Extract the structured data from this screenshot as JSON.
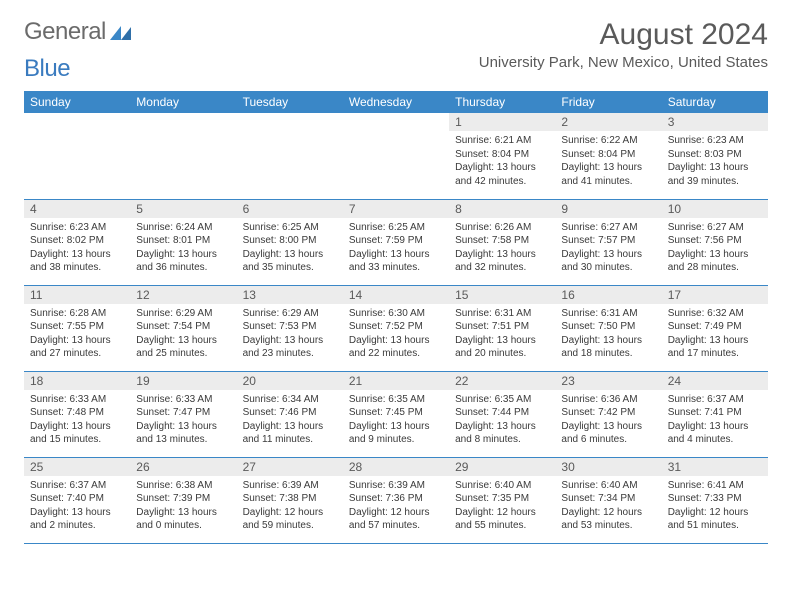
{
  "logo": {
    "part1": "General",
    "part2": "Blue"
  },
  "title": "August 2024",
  "location": "University Park, New Mexico, United States",
  "colors": {
    "header_bg": "#3a87c7",
    "header_text": "#ffffff",
    "daynum_bg": "#ececec",
    "border": "#3a87c7",
    "title_color": "#5a5a5a",
    "logo_gray": "#6b6b6b",
    "logo_blue": "#3a7bbf"
  },
  "day_headers": [
    "Sunday",
    "Monday",
    "Tuesday",
    "Wednesday",
    "Thursday",
    "Friday",
    "Saturday"
  ],
  "weeks": [
    [
      null,
      null,
      null,
      null,
      {
        "n": "1",
        "sunrise": "Sunrise: 6:21 AM",
        "sunset": "Sunset: 8:04 PM",
        "daylight": "Daylight: 13 hours and 42 minutes."
      },
      {
        "n": "2",
        "sunrise": "Sunrise: 6:22 AM",
        "sunset": "Sunset: 8:04 PM",
        "daylight": "Daylight: 13 hours and 41 minutes."
      },
      {
        "n": "3",
        "sunrise": "Sunrise: 6:23 AM",
        "sunset": "Sunset: 8:03 PM",
        "daylight": "Daylight: 13 hours and 39 minutes."
      }
    ],
    [
      {
        "n": "4",
        "sunrise": "Sunrise: 6:23 AM",
        "sunset": "Sunset: 8:02 PM",
        "daylight": "Daylight: 13 hours and 38 minutes."
      },
      {
        "n": "5",
        "sunrise": "Sunrise: 6:24 AM",
        "sunset": "Sunset: 8:01 PM",
        "daylight": "Daylight: 13 hours and 36 minutes."
      },
      {
        "n": "6",
        "sunrise": "Sunrise: 6:25 AM",
        "sunset": "Sunset: 8:00 PM",
        "daylight": "Daylight: 13 hours and 35 minutes."
      },
      {
        "n": "7",
        "sunrise": "Sunrise: 6:25 AM",
        "sunset": "Sunset: 7:59 PM",
        "daylight": "Daylight: 13 hours and 33 minutes."
      },
      {
        "n": "8",
        "sunrise": "Sunrise: 6:26 AM",
        "sunset": "Sunset: 7:58 PM",
        "daylight": "Daylight: 13 hours and 32 minutes."
      },
      {
        "n": "9",
        "sunrise": "Sunrise: 6:27 AM",
        "sunset": "Sunset: 7:57 PM",
        "daylight": "Daylight: 13 hours and 30 minutes."
      },
      {
        "n": "10",
        "sunrise": "Sunrise: 6:27 AM",
        "sunset": "Sunset: 7:56 PM",
        "daylight": "Daylight: 13 hours and 28 minutes."
      }
    ],
    [
      {
        "n": "11",
        "sunrise": "Sunrise: 6:28 AM",
        "sunset": "Sunset: 7:55 PM",
        "daylight": "Daylight: 13 hours and 27 minutes."
      },
      {
        "n": "12",
        "sunrise": "Sunrise: 6:29 AM",
        "sunset": "Sunset: 7:54 PM",
        "daylight": "Daylight: 13 hours and 25 minutes."
      },
      {
        "n": "13",
        "sunrise": "Sunrise: 6:29 AM",
        "sunset": "Sunset: 7:53 PM",
        "daylight": "Daylight: 13 hours and 23 minutes."
      },
      {
        "n": "14",
        "sunrise": "Sunrise: 6:30 AM",
        "sunset": "Sunset: 7:52 PM",
        "daylight": "Daylight: 13 hours and 22 minutes."
      },
      {
        "n": "15",
        "sunrise": "Sunrise: 6:31 AM",
        "sunset": "Sunset: 7:51 PM",
        "daylight": "Daylight: 13 hours and 20 minutes."
      },
      {
        "n": "16",
        "sunrise": "Sunrise: 6:31 AM",
        "sunset": "Sunset: 7:50 PM",
        "daylight": "Daylight: 13 hours and 18 minutes."
      },
      {
        "n": "17",
        "sunrise": "Sunrise: 6:32 AM",
        "sunset": "Sunset: 7:49 PM",
        "daylight": "Daylight: 13 hours and 17 minutes."
      }
    ],
    [
      {
        "n": "18",
        "sunrise": "Sunrise: 6:33 AM",
        "sunset": "Sunset: 7:48 PM",
        "daylight": "Daylight: 13 hours and 15 minutes."
      },
      {
        "n": "19",
        "sunrise": "Sunrise: 6:33 AM",
        "sunset": "Sunset: 7:47 PM",
        "daylight": "Daylight: 13 hours and 13 minutes."
      },
      {
        "n": "20",
        "sunrise": "Sunrise: 6:34 AM",
        "sunset": "Sunset: 7:46 PM",
        "daylight": "Daylight: 13 hours and 11 minutes."
      },
      {
        "n": "21",
        "sunrise": "Sunrise: 6:35 AM",
        "sunset": "Sunset: 7:45 PM",
        "daylight": "Daylight: 13 hours and 9 minutes."
      },
      {
        "n": "22",
        "sunrise": "Sunrise: 6:35 AM",
        "sunset": "Sunset: 7:44 PM",
        "daylight": "Daylight: 13 hours and 8 minutes."
      },
      {
        "n": "23",
        "sunrise": "Sunrise: 6:36 AM",
        "sunset": "Sunset: 7:42 PM",
        "daylight": "Daylight: 13 hours and 6 minutes."
      },
      {
        "n": "24",
        "sunrise": "Sunrise: 6:37 AM",
        "sunset": "Sunset: 7:41 PM",
        "daylight": "Daylight: 13 hours and 4 minutes."
      }
    ],
    [
      {
        "n": "25",
        "sunrise": "Sunrise: 6:37 AM",
        "sunset": "Sunset: 7:40 PM",
        "daylight": "Daylight: 13 hours and 2 minutes."
      },
      {
        "n": "26",
        "sunrise": "Sunrise: 6:38 AM",
        "sunset": "Sunset: 7:39 PM",
        "daylight": "Daylight: 13 hours and 0 minutes."
      },
      {
        "n": "27",
        "sunrise": "Sunrise: 6:39 AM",
        "sunset": "Sunset: 7:38 PM",
        "daylight": "Daylight: 12 hours and 59 minutes."
      },
      {
        "n": "28",
        "sunrise": "Sunrise: 6:39 AM",
        "sunset": "Sunset: 7:36 PM",
        "daylight": "Daylight: 12 hours and 57 minutes."
      },
      {
        "n": "29",
        "sunrise": "Sunrise: 6:40 AM",
        "sunset": "Sunset: 7:35 PM",
        "daylight": "Daylight: 12 hours and 55 minutes."
      },
      {
        "n": "30",
        "sunrise": "Sunrise: 6:40 AM",
        "sunset": "Sunset: 7:34 PM",
        "daylight": "Daylight: 12 hours and 53 minutes."
      },
      {
        "n": "31",
        "sunrise": "Sunrise: 6:41 AM",
        "sunset": "Sunset: 7:33 PM",
        "daylight": "Daylight: 12 hours and 51 minutes."
      }
    ]
  ]
}
